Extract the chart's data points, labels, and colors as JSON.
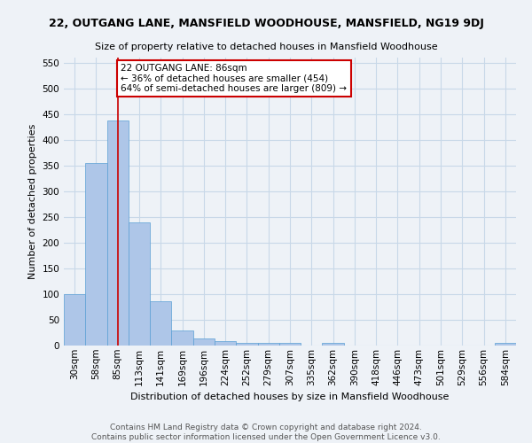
{
  "title": "22, OUTGANG LANE, MANSFIELD WOODHOUSE, MANSFIELD, NG19 9DJ",
  "subtitle": "Size of property relative to detached houses in Mansfield Woodhouse",
  "xlabel": "Distribution of detached houses by size in Mansfield Woodhouse",
  "ylabel": "Number of detached properties",
  "footer1": "Contains HM Land Registry data © Crown copyright and database right 2024.",
  "footer2": "Contains public sector information licensed under the Open Government Licence v3.0.",
  "categories": [
    "30sqm",
    "58sqm",
    "85sqm",
    "113sqm",
    "141sqm",
    "169sqm",
    "196sqm",
    "224sqm",
    "252sqm",
    "279sqm",
    "307sqm",
    "335sqm",
    "362sqm",
    "390sqm",
    "418sqm",
    "446sqm",
    "473sqm",
    "501sqm",
    "529sqm",
    "556sqm",
    "584sqm"
  ],
  "values": [
    100,
    355,
    438,
    239,
    86,
    29,
    13,
    9,
    6,
    5,
    5,
    0,
    5,
    0,
    0,
    0,
    0,
    0,
    0,
    0,
    5
  ],
  "bar_color": "#aec6e8",
  "bar_edge_color": "#5a9fd4",
  "grid_color": "#c8d8e8",
  "background_color": "#eef2f7",
  "annotation_box_text": "22 OUTGANG LANE: 86sqm\n← 36% of detached houses are smaller (454)\n64% of semi-detached houses are larger (809) →",
  "vline_x_index": 2,
  "vline_color": "#cc0000",
  "ylim": [
    0,
    560
  ],
  "yticks": [
    0,
    50,
    100,
    150,
    200,
    250,
    300,
    350,
    400,
    450,
    500,
    550
  ],
  "annotation_box_color": "#ffffff",
  "annotation_box_edge": "#cc0000",
  "title_fontsize": 9,
  "subtitle_fontsize": 8,
  "xlabel_fontsize": 8,
  "ylabel_fontsize": 8,
  "tick_fontsize": 7.5,
  "footer_fontsize": 6.5,
  "annotation_fontsize": 7.5
}
